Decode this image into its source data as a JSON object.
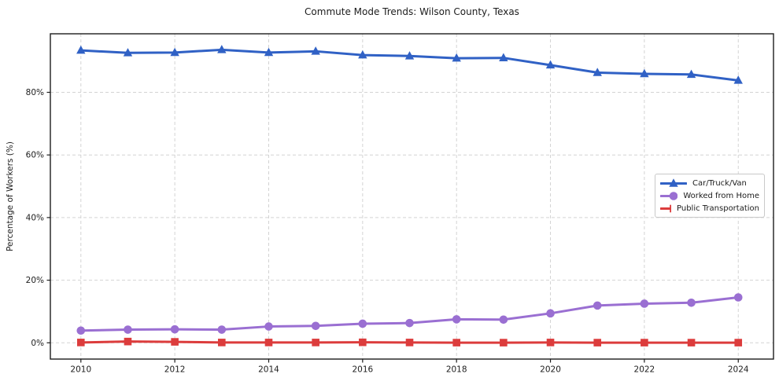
{
  "chart_data": {
    "type": "line",
    "title": "Commute Mode Trends: Wilson County, Texas",
    "ylabel": "Percentage of Workers (%)",
    "xlabel": "",
    "x": [
      2010,
      2011,
      2012,
      2013,
      2014,
      2015,
      2016,
      2017,
      2018,
      2019,
      2020,
      2021,
      2022,
      2023,
      2024
    ],
    "series": [
      {
        "name": "Car/Truck/Van",
        "color": "#3061c5",
        "marker": "triangle",
        "values": [
          93.4,
          92.6,
          92.7,
          93.6,
          92.7,
          93.1,
          91.9,
          91.6,
          90.9,
          91.0,
          88.7,
          86.3,
          85.9,
          85.7,
          83.8
        ]
      },
      {
        "name": "Worked from Home",
        "color": "#9a6fd2",
        "marker": "circle",
        "values": [
          3.9,
          4.2,
          4.3,
          4.2,
          5.2,
          5.4,
          6.1,
          6.3,
          7.5,
          7.4,
          9.4,
          11.9,
          12.5,
          12.8,
          14.5
        ]
      },
      {
        "name": "Public Transportation",
        "color": "#dc3c3c",
        "marker": "square",
        "values": [
          0.1,
          0.4,
          0.3,
          0.1,
          0.1,
          0.1,
          0.15,
          0.1,
          0.05,
          0.05,
          0.1,
          0.05,
          0.05,
          0.05,
          0.05
        ]
      }
    ],
    "xticks": {
      "values": [
        2010,
        2012,
        2014,
        2016,
        2018,
        2020,
        2022,
        2024
      ],
      "labels": [
        "2010",
        "2012",
        "2014",
        "2016",
        "2018",
        "2020",
        "2022",
        "2024"
      ]
    },
    "yticks": {
      "values": [
        0,
        20,
        40,
        60,
        80
      ],
      "labels": [
        "0%",
        "20%",
        "40%",
        "60%",
        "80%"
      ]
    },
    "xlim": [
      2009.35,
      2024.75
    ],
    "ylim": [
      -5.2,
      98.7
    ],
    "grid": true,
    "grid_style": "dashed",
    "grid_color": "#d3d3d3",
    "axis_color": "#1c1c1c",
    "legend_position": "right"
  }
}
